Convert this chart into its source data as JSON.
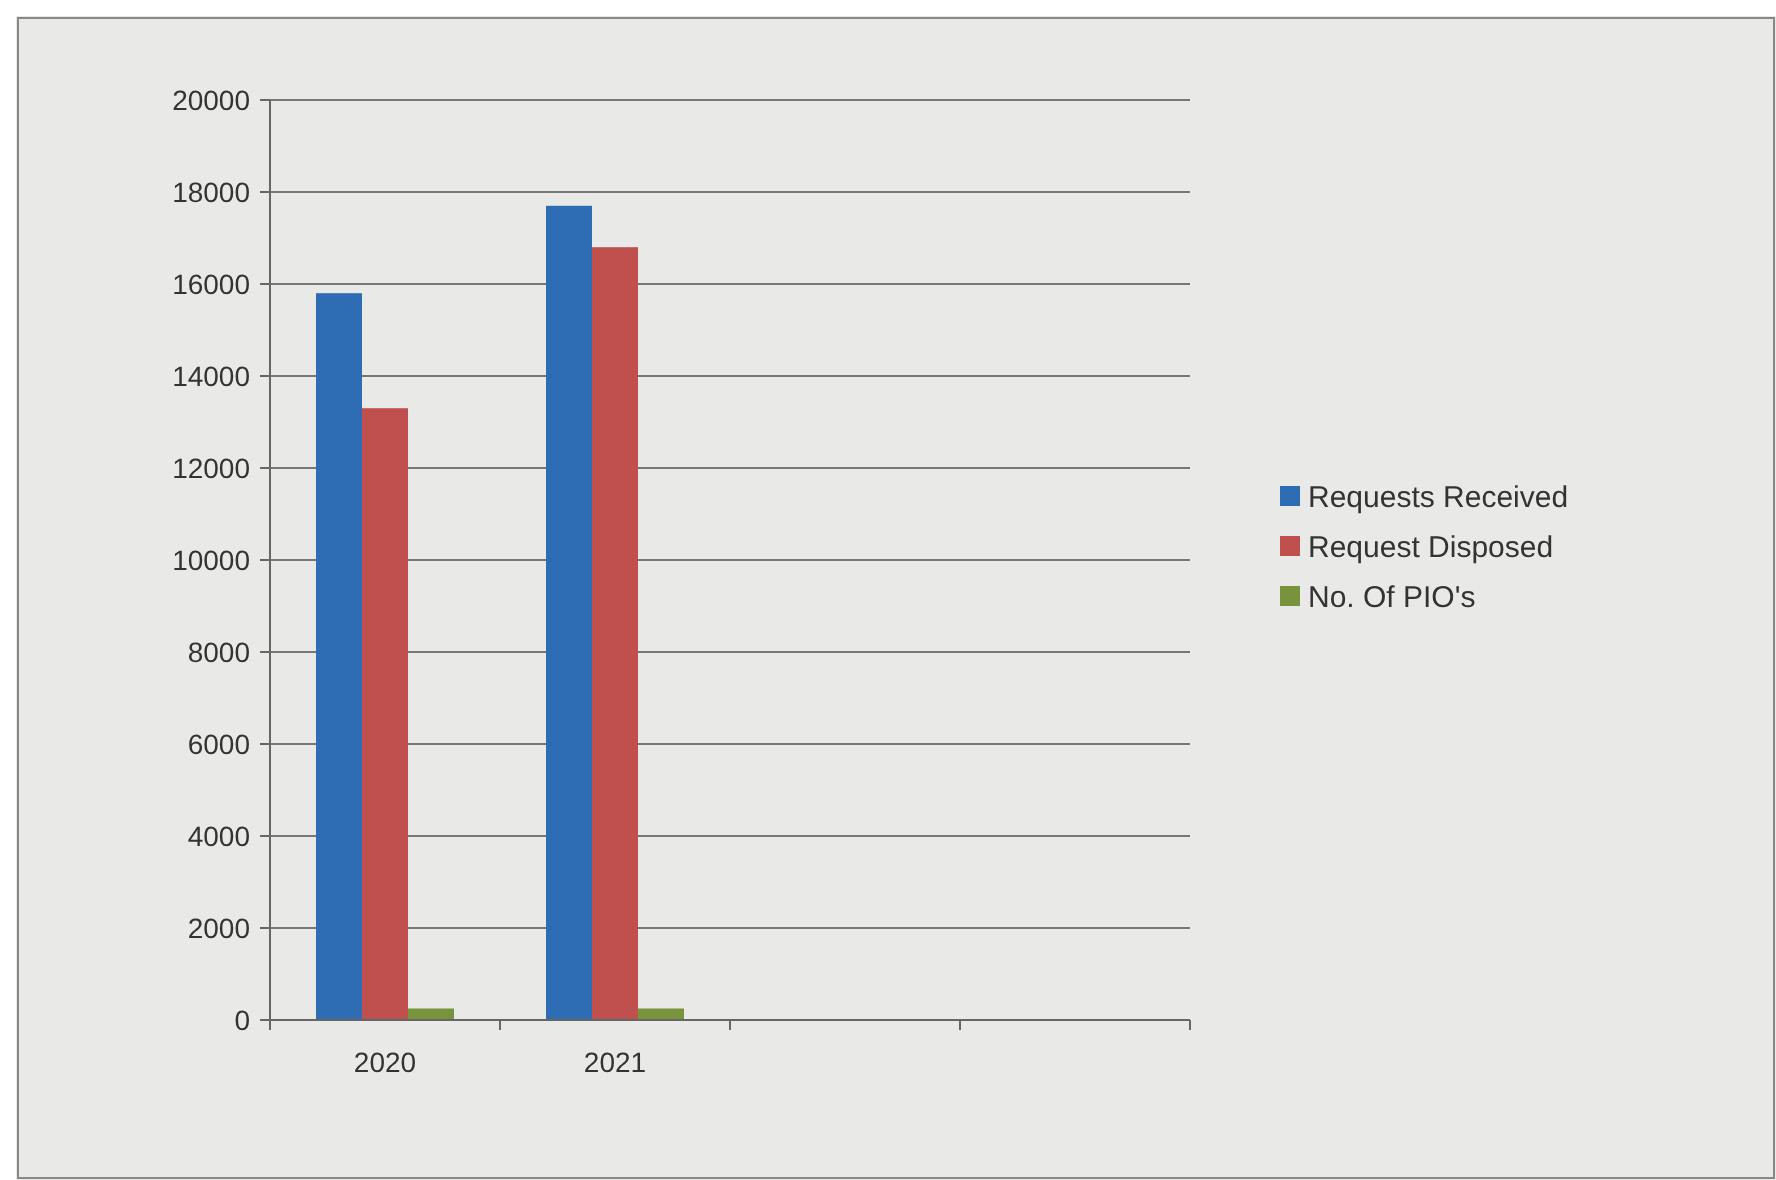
{
  "chart_data": {
    "type": "bar",
    "categories": [
      "2020",
      "2021",
      null,
      null
    ],
    "series": [
      {
        "name": "Requests Received",
        "color": "#2e6db4",
        "values": [
          15800,
          17700,
          null,
          null
        ]
      },
      {
        "name": "Request Disposed",
        "color": "#c0504d",
        "values": [
          13300,
          16800,
          null,
          null
        ]
      },
      {
        "name": "No. Of PIO's",
        "color": "#77933c",
        "values": [
          250,
          250,
          null,
          null
        ]
      }
    ],
    "ylim": [
      0,
      20000
    ],
    "yticks": [
      0,
      2000,
      4000,
      6000,
      8000,
      10000,
      12000,
      14000,
      16000,
      18000,
      20000
    ],
    "grid": "y",
    "legend": "right"
  }
}
